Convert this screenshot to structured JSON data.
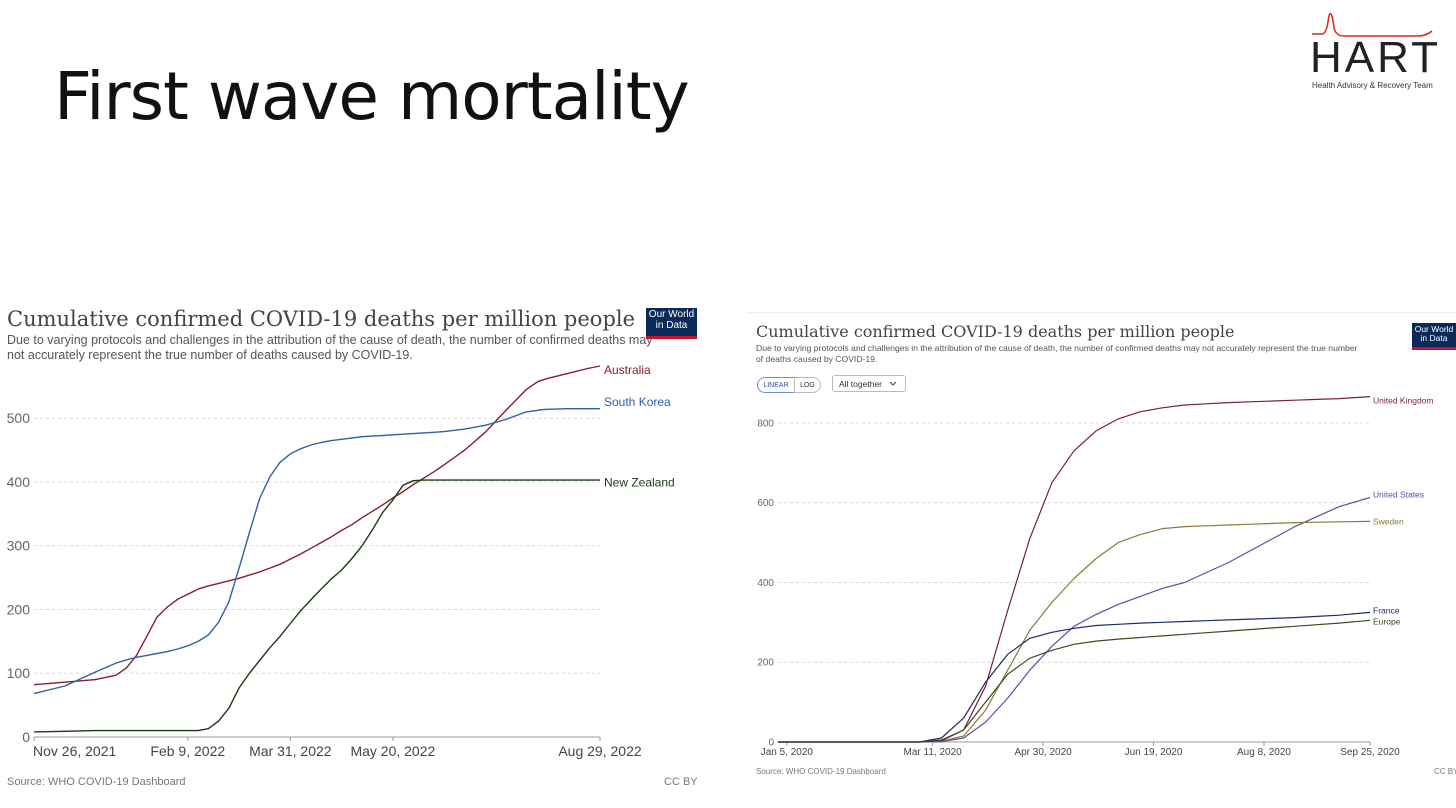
{
  "slide": {
    "title": "First wave mortality",
    "logo": {
      "word": "HART",
      "subtitle": "Health Advisory & Recovery Team",
      "accent": "#d42a1e"
    }
  },
  "chart_left": {
    "title": "Cumulative confirmed COVID-19 deaths per million people",
    "subtitle_line1": "Due to varying protocols and challenges in the attribution of the cause of death, the number of confirmed deaths may",
    "subtitle_line2": "not accurately represent the true number of deaths caused by COVID-19.",
    "badge_line1": "Our World",
    "badge_line2": "in Data",
    "source": "Source: WHO COVID-19 Dashboard",
    "license": "CC BY"
  },
  "chart_right": {
    "title": "Cumulative confirmed COVID-19 deaths per million people",
    "subtitle_line1": "Due to varying protocols and challenges in the attribution of the cause of death, the number of confirmed deaths may not accurately represent the true number",
    "subtitle_line2": "of deaths caused by COVID-19.",
    "badge_line1": "Our World",
    "badge_line2": "in Data",
    "linear_label": "LINEAR",
    "log_label": "LOG",
    "dropdown_label": "All together",
    "source": "Source: WHO COVID-19 Dashboard",
    "license": "CC BY"
  },
  "chart_data": [
    {
      "type": "line",
      "title": "Cumulative confirmed COVID-19 deaths per million people",
      "x_ticks": [
        "Nov 26, 2021",
        "Feb 9, 2022",
        "Mar 31, 2022",
        "May 20, 2022",
        "Aug 29, 2022"
      ],
      "x_tick_days": [
        0,
        75,
        125,
        175,
        276
      ],
      "x_range_days": [
        0,
        276
      ],
      "y_ticks": [
        0,
        100,
        200,
        300,
        400,
        500
      ],
      "ylim": [
        0,
        560
      ],
      "grid": true,
      "x": [
        0,
        15,
        30,
        40,
        45,
        50,
        55,
        60,
        65,
        70,
        75,
        80,
        85,
        90,
        95,
        100,
        105,
        110,
        115,
        120,
        125,
        130,
        135,
        140,
        145,
        150,
        155,
        160,
        165,
        170,
        175,
        180,
        185,
        190,
        195,
        200,
        210,
        220,
        230,
        240,
        245,
        246,
        250,
        260,
        270,
        276
      ],
      "series": [
        {
          "name": "Australia",
          "color": "#8c1c2a",
          "values": [
            82,
            86,
            90,
            97,
            108,
            128,
            158,
            188,
            204,
            216,
            224,
            232,
            237,
            241,
            245,
            249,
            254,
            259,
            265,
            271,
            279,
            287,
            296,
            305,
            314,
            324,
            333,
            344,
            354,
            364,
            375,
            385,
            396,
            406,
            416,
            427,
            450,
            478,
            512,
            545,
            556,
            558,
            562,
            570,
            578,
            582
          ]
        },
        {
          "name": "South Korea",
          "color": "#2e62a8",
          "values": [
            68,
            80,
            102,
            116,
            121,
            125,
            128,
            131,
            134,
            138,
            143,
            150,
            160,
            180,
            212,
            265,
            320,
            374,
            408,
            431,
            444,
            452,
            458,
            462,
            465,
            467,
            469,
            471,
            472,
            473,
            474,
            475,
            476,
            477,
            478,
            479,
            483,
            489,
            498,
            510,
            512,
            513,
            514,
            515,
            515,
            515
          ]
        },
        {
          "name": "New Zealand",
          "color": "#1d3b16",
          "values": [
            8,
            9,
            10,
            10,
            10,
            10,
            10,
            10,
            10,
            10,
            10,
            10,
            13,
            25,
            45,
            77,
            100,
            120,
            140,
            158,
            178,
            198,
            215,
            232,
            248,
            262,
            280,
            300,
            325,
            352,
            372,
            395,
            402,
            403,
            403,
            403,
            403,
            403,
            403,
            403,
            403,
            403,
            403,
            403,
            403,
            403
          ]
        }
      ]
    },
    {
      "type": "line",
      "title": "Cumulative confirmed COVID-19 deaths per million people",
      "scale": "linear",
      "x_ticks": [
        "Jan 5, 2020",
        "Mar 11, 2020",
        "Apr 30, 2020",
        "Jun 19, 2020",
        "Aug 8, 2020",
        "Sep 25, 2020"
      ],
      "x_tick_days": [
        0,
        66,
        116,
        166,
        216,
        264
      ],
      "x_range_days": [
        -4,
        264
      ],
      "y_ticks": [
        0,
        200,
        400,
        600,
        800
      ],
      "ylim": [
        0,
        880
      ],
      "grid": true,
      "x": [
        -4,
        60,
        70,
        80,
        90,
        100,
        110,
        120,
        130,
        140,
        150,
        160,
        170,
        180,
        190,
        200,
        210,
        220,
        230,
        240,
        250,
        264
      ],
      "series": [
        {
          "name": "United Kingdom",
          "color": "#7a1e3c",
          "values": [
            0,
            0,
            5,
            30,
            140,
            330,
            510,
            650,
            730,
            780,
            810,
            828,
            838,
            845,
            848,
            851,
            853,
            855,
            857,
            859,
            861,
            866
          ]
        },
        {
          "name": "United States",
          "color": "#5a4fa8",
          "values": [
            0,
            0,
            1,
            10,
            50,
            110,
            180,
            240,
            290,
            320,
            345,
            365,
            385,
            400,
            425,
            450,
            480,
            510,
            540,
            565,
            590,
            613
          ]
        },
        {
          "name": "Sweden",
          "color": "#8a7a3a",
          "values": [
            0,
            0,
            2,
            15,
            80,
            180,
            280,
            350,
            410,
            460,
            500,
            520,
            535,
            540,
            542,
            544,
            546,
            548,
            550,
            551,
            552,
            553
          ]
        },
        {
          "name": "France",
          "color": "#1b2a6b",
          "values": [
            0,
            0,
            10,
            60,
            150,
            220,
            260,
            275,
            285,
            292,
            295,
            298,
            300,
            302,
            304,
            306,
            308,
            310,
            312,
            315,
            318,
            325
          ]
        },
        {
          "name": "Europe",
          "color": "#3d4a1e",
          "values": [
            0,
            0,
            3,
            30,
            100,
            170,
            210,
            230,
            245,
            253,
            258,
            262,
            266,
            270,
            274,
            278,
            282,
            286,
            290,
            294,
            298,
            305
          ]
        }
      ]
    }
  ]
}
